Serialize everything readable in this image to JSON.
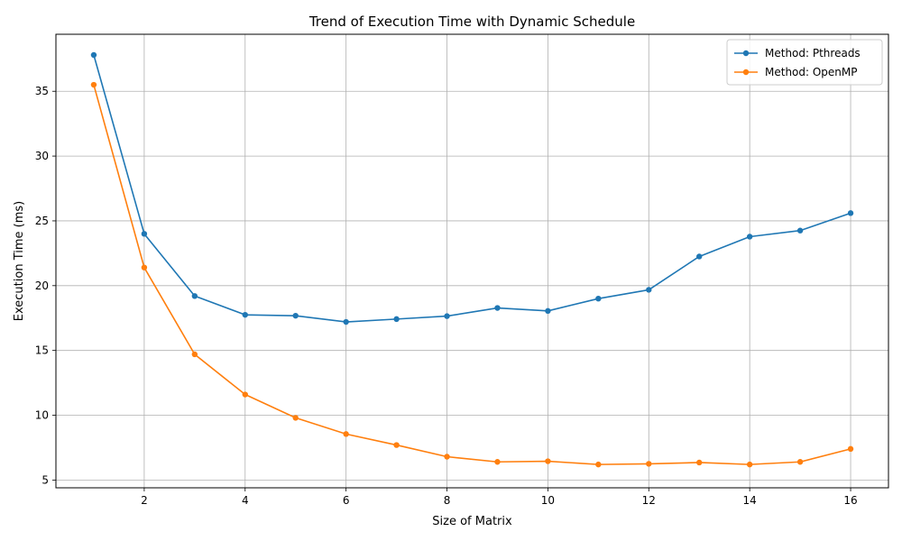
{
  "chart_data": {
    "type": "line",
    "title": "Trend of Execution Time with Dynamic Schedule",
    "xlabel": "Size of Matrix",
    "ylabel": "Execution Time (ms)",
    "xlim": [
      0.25,
      16.75
    ],
    "ylim": [
      4.4,
      39.4
    ],
    "xticks": [
      2,
      4,
      6,
      8,
      10,
      12,
      14,
      16
    ],
    "yticks": [
      5,
      10,
      15,
      20,
      25,
      30,
      35
    ],
    "grid": true,
    "legend_position": "top-right",
    "x": [
      1,
      2,
      3,
      4,
      5,
      6,
      7,
      8,
      9,
      10,
      11,
      12,
      13,
      14,
      15,
      16
    ],
    "series": [
      {
        "name": "Method: Pthreads",
        "color": "#1f77b4",
        "values": [
          37.8,
          24.0,
          19.2,
          17.75,
          17.68,
          17.2,
          17.42,
          17.65,
          18.28,
          18.05,
          19.0,
          19.68,
          22.25,
          23.78,
          24.25,
          25.6
        ]
      },
      {
        "name": "Method: OpenMP",
        "color": "#ff7f0e",
        "values": [
          35.5,
          21.4,
          14.7,
          11.6,
          9.8,
          8.55,
          7.7,
          6.8,
          6.4,
          6.45,
          6.2,
          6.25,
          6.35,
          6.2,
          6.4,
          7.4
        ]
      }
    ]
  }
}
